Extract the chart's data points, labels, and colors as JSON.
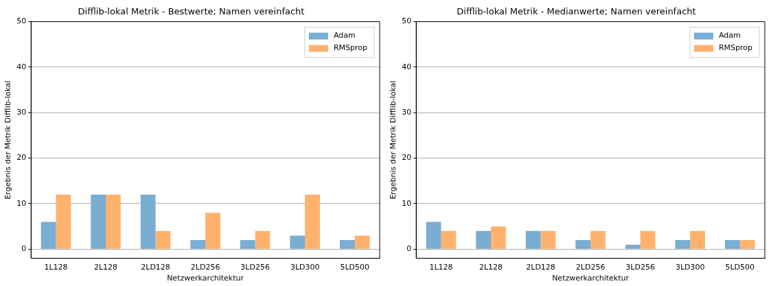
{
  "chart_data": [
    {
      "type": "bar",
      "title": "Difflib-lokal Metrik - Bestwerte; Namen vereinfacht",
      "xlabel": "Netzwerkarchitektur",
      "ylabel": "Ergebnis der Metrik Difflib-lokal",
      "categories": [
        "1L128",
        "2L128",
        "2LD128",
        "2LD256",
        "3LD256",
        "3LD300",
        "5LD500"
      ],
      "series": [
        {
          "name": "Adam",
          "color": "#79add2",
          "values": [
            6,
            12,
            12,
            2,
            2,
            3,
            2
          ]
        },
        {
          "name": "RMSprop",
          "color": "#ffb26e",
          "values": [
            12,
            12,
            4,
            8,
            4,
            12,
            3
          ]
        }
      ],
      "ylim": [
        -2,
        50
      ],
      "yticks": [
        0,
        10,
        20,
        30,
        40,
        50
      ],
      "grid": "y",
      "legend": "top right"
    },
    {
      "type": "bar",
      "title": "Difflib-lokal Metrik - Medianwerte; Namen vereinfacht",
      "xlabel": "Netzwerkarchitektur",
      "ylabel": "Ergebnis der Metrik Difflib-lokal",
      "categories": [
        "1L128",
        "2L128",
        "2LD128",
        "2LD256",
        "3LD256",
        "3LD300",
        "5LD500"
      ],
      "series": [
        {
          "name": "Adam",
          "color": "#79add2",
          "values": [
            6,
            4,
            4,
            2,
            1,
            2,
            2
          ]
        },
        {
          "name": "RMSprop",
          "color": "#ffb26e",
          "values": [
            4,
            5,
            4,
            4,
            4,
            4,
            2
          ]
        }
      ],
      "ylim": [
        -2,
        50
      ],
      "yticks": [
        0,
        10,
        20,
        30,
        40,
        50
      ],
      "grid": "y",
      "legend": "top right"
    }
  ]
}
